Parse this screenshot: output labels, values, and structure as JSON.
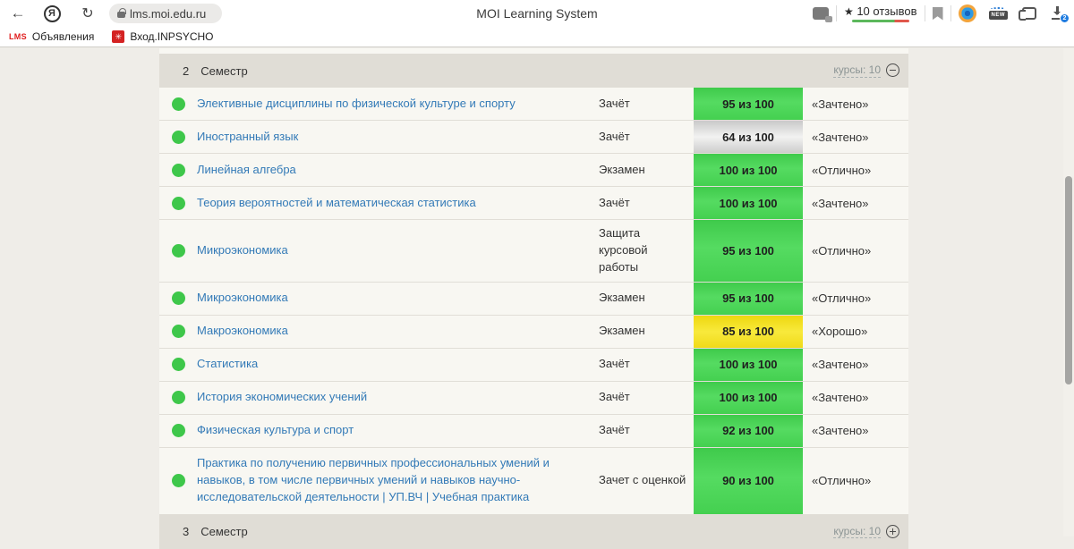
{
  "browser": {
    "url": "lms.moi.edu.ru",
    "page_title": "MOI Learning System",
    "icons": {
      "back": "←",
      "reload": "↻",
      "yandex_letter": "Я",
      "star": "★"
    },
    "reviews_label": "10 отзывов",
    "download_badge": "2",
    "new_badge": "NEW",
    "bookmarks": [
      {
        "favicon_text": "LMS",
        "label": "Объявления"
      },
      {
        "favicon_text": "✳",
        "label": "Вход.INPSYCHO"
      }
    ]
  },
  "colors": {
    "dot_green": "#3ec74a",
    "score_green": "#4cd658",
    "score_yellow": "#f3e11c",
    "score_silver": "#dedede",
    "link_blue": "#337ab7",
    "header_bg": "#e0ddd6",
    "reviews_bar_green": "#5cb85c",
    "reviews_bar_red": "#e0574b",
    "download_badge_blue": "#1e7be0"
  },
  "grades": {
    "sections": [
      {
        "number": "2",
        "title": "Семестр",
        "courses_label": "курсы: 10",
        "toggle": "collapse"
      },
      {
        "number": "3",
        "title": "Семестр",
        "courses_label": "курсы: 10",
        "toggle": "expand"
      }
    ],
    "rows": [
      {
        "name": "Элективные дисциплины по физической культуре и спорту",
        "type": "Зачёт",
        "score": "95 из 100",
        "score_color": "green",
        "grade": "«Зачтено»"
      },
      {
        "name": "Иностранный язык",
        "type": "Зачёт",
        "score": "64 из 100",
        "score_color": "silver",
        "grade": "«Зачтено»"
      },
      {
        "name": "Линейная алгебра",
        "type": "Экзамен",
        "score": "100 из 100",
        "score_color": "green",
        "grade": "«Отлично»"
      },
      {
        "name": "Теория вероятностей и математическая статистика",
        "type": "Зачёт",
        "score": "100 из 100",
        "score_color": "green",
        "grade": "«Зачтено»"
      },
      {
        "name": "Микроэкономика",
        "type": "Защита курсовой работы",
        "score": "95 из 100",
        "score_color": "green",
        "grade": "«Отлично»"
      },
      {
        "name": "Микроэкономика",
        "type": "Экзамен",
        "score": "95 из 100",
        "score_color": "green",
        "grade": "«Отлично»"
      },
      {
        "name": "Макроэкономика",
        "type": "Экзамен",
        "score": "85 из 100",
        "score_color": "yellow",
        "grade": "«Хорошо»"
      },
      {
        "name": "Статистика",
        "type": "Зачёт",
        "score": "100 из 100",
        "score_color": "green",
        "grade": "«Зачтено»"
      },
      {
        "name": "История экономических учений",
        "type": "Зачёт",
        "score": "100 из 100",
        "score_color": "green",
        "grade": "«Зачтено»"
      },
      {
        "name": "Физическая культура и спорт",
        "type": "Зачёт",
        "score": "92 из 100",
        "score_color": "green",
        "grade": "«Зачтено»"
      },
      {
        "name": "Практика по получению первичных профессиональных умений и навыков, в том числе первичных умений и навыков научно-исследовательской деятельности | УП.ВЧ | Учебная практика",
        "type": "Зачет с оценкой",
        "score": "90 из 100",
        "score_color": "green",
        "grade": "«Отлично»"
      }
    ]
  }
}
